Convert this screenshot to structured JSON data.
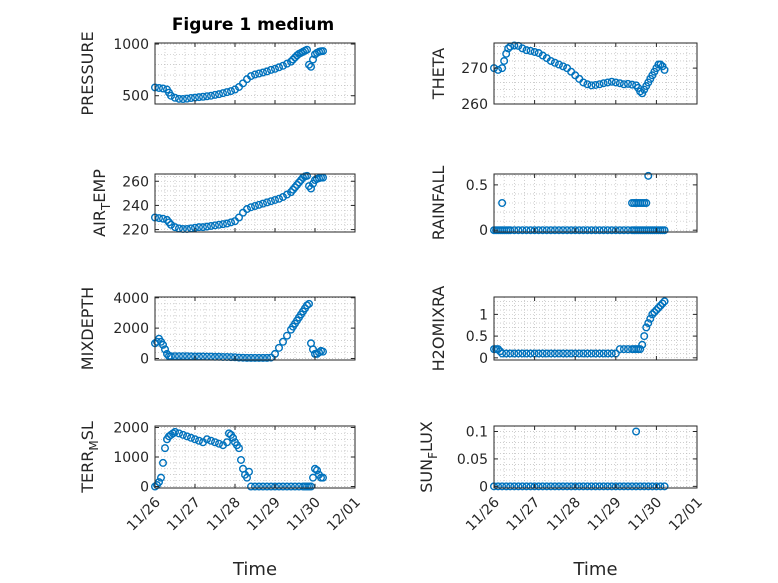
{
  "figure": {
    "title": "Figure 1 medium",
    "marker_color": "#0072BD",
    "axes_color": "#262626",
    "grid_color": "#b0b0b0"
  },
  "chart_data": [
    {
      "type": "scatter",
      "ylabel": "PRESSURE",
      "xlabel": "",
      "title": "Figure 1 medium",
      "ylim": [
        420,
        1010
      ],
      "yticks": [
        500,
        1000
      ],
      "xlim": [
        0,
        5
      ],
      "xticklabels_visible": false,
      "series": [
        {
          "x": [
            0.0,
            0.1,
            0.2,
            0.3,
            0.35,
            0.4,
            0.5,
            0.6,
            0.7,
            0.8,
            0.9,
            1.0,
            1.1,
            1.2,
            1.3,
            1.4,
            1.5,
            1.6,
            1.7,
            1.8,
            1.9,
            2.0,
            2.1,
            2.2,
            2.3,
            2.4,
            2.5,
            2.6,
            2.7,
            2.8,
            2.9,
            3.0,
            3.1,
            3.2,
            3.3,
            3.4,
            3.45,
            3.5,
            3.55,
            3.6,
            3.65,
            3.7,
            3.75,
            3.8,
            3.85,
            3.9,
            3.95,
            4.0,
            4.05,
            4.1,
            4.15,
            4.2
          ],
          "y": [
            580,
            575,
            570,
            560,
            530,
            500,
            480,
            470,
            468,
            472,
            478,
            482,
            486,
            490,
            495,
            500,
            508,
            515,
            525,
            535,
            545,
            560,
            585,
            620,
            660,
            690,
            705,
            715,
            725,
            735,
            750,
            760,
            775,
            790,
            810,
            830,
            850,
            870,
            890,
            905,
            915,
            925,
            935,
            945,
            800,
            780,
            850,
            900,
            915,
            925,
            930,
            932
          ]
        }
      ]
    },
    {
      "type": "scatter",
      "ylabel": "THETA",
      "xlabel": "",
      "ylim": [
        260,
        277
      ],
      "yticks": [
        260,
        270
      ],
      "xlim": [
        0,
        5
      ],
      "xticklabels_visible": false,
      "series": [
        {
          "x": [
            0.0,
            0.1,
            0.2,
            0.25,
            0.3,
            0.35,
            0.4,
            0.5,
            0.6,
            0.7,
            0.8,
            0.9,
            1.0,
            1.1,
            1.2,
            1.3,
            1.4,
            1.5,
            1.6,
            1.7,
            1.8,
            1.9,
            2.0,
            2.1,
            2.2,
            2.3,
            2.4,
            2.5,
            2.6,
            2.7,
            2.8,
            2.9,
            3.0,
            3.1,
            3.2,
            3.3,
            3.4,
            3.5,
            3.55,
            3.6,
            3.65,
            3.7,
            3.75,
            3.8,
            3.85,
            3.9,
            3.95,
            4.0,
            4.05,
            4.1,
            4.15,
            4.2
          ],
          "y": [
            270,
            269.5,
            270,
            272,
            274,
            275.5,
            276,
            276.3,
            276.2,
            275.5,
            275,
            274.8,
            274.5,
            274.2,
            273.5,
            272.8,
            272,
            271.5,
            271,
            270.5,
            270,
            269,
            268,
            267,
            266,
            265.5,
            265.2,
            265.3,
            265.5,
            265.8,
            266,
            266.2,
            266,
            265.8,
            265.5,
            265.6,
            265.4,
            265.2,
            264.5,
            263.5,
            263,
            264,
            265,
            266,
            267,
            268,
            269,
            270,
            271,
            271,
            270.5,
            269.5
          ]
        }
      ]
    },
    {
      "type": "scatter",
      "ylabel": "AIR_TEMP",
      "xlabel": "",
      "ylim": [
        218,
        266
      ],
      "yticks": [
        220,
        240,
        260
      ],
      "xlim": [
        0,
        5
      ],
      "xticklabels_visible": false,
      "series": [
        {
          "x": [
            0.0,
            0.1,
            0.2,
            0.3,
            0.35,
            0.4,
            0.5,
            0.6,
            0.7,
            0.8,
            0.9,
            1.0,
            1.1,
            1.2,
            1.3,
            1.4,
            1.5,
            1.6,
            1.7,
            1.8,
            1.9,
            2.0,
            2.1,
            2.2,
            2.3,
            2.4,
            2.5,
            2.6,
            2.7,
            2.8,
            2.9,
            3.0,
            3.1,
            3.2,
            3.3,
            3.4,
            3.45,
            3.5,
            3.55,
            3.6,
            3.65,
            3.7,
            3.75,
            3.8,
            3.85,
            3.9,
            3.95,
            4.0,
            4.05,
            4.1,
            4.15,
            4.2
          ],
          "y": [
            230,
            229.5,
            229,
            228,
            226,
            224,
            222,
            221,
            220.5,
            220.5,
            221,
            221.5,
            222,
            222,
            222.5,
            223,
            223.5,
            224,
            224.5,
            225,
            226,
            227,
            230,
            234,
            237,
            238.5,
            239.5,
            240.5,
            241.5,
            242.5,
            243.5,
            244.5,
            245.5,
            247,
            249,
            251,
            253,
            255,
            257,
            259,
            261,
            263,
            264,
            264.5,
            256,
            254,
            258,
            261,
            262,
            262.5,
            263,
            263
          ]
        }
      ]
    },
    {
      "type": "scatter",
      "ylabel": "RAINFALL",
      "xlabel": "",
      "ylim": [
        -0.02,
        0.62
      ],
      "yticks": [
        0,
        0.5
      ],
      "xlim": [
        0,
        5
      ],
      "xticklabels_visible": false,
      "series": [
        {
          "x": [
            0.0,
            0.05,
            0.1,
            0.15,
            0.2,
            0.25,
            0.3,
            0.35,
            0.4,
            0.5,
            0.6,
            0.7,
            0.8,
            0.9,
            1.0,
            1.1,
            1.2,
            1.3,
            1.4,
            1.5,
            1.6,
            1.7,
            1.8,
            1.9,
            2.0,
            2.1,
            2.2,
            2.3,
            2.4,
            2.5,
            2.6,
            2.7,
            2.8,
            2.9,
            3.0,
            3.1,
            3.2,
            3.3,
            3.4,
            3.45,
            3.5,
            3.55,
            3.6,
            3.65,
            3.7,
            3.75,
            3.8,
            3.85,
            3.9,
            3.95,
            4.0,
            4.05,
            4.1,
            4.15,
            4.2,
            0.2,
            3.4,
            3.45,
            3.5,
            3.55,
            3.6,
            3.65,
            3.7,
            3.75,
            3.8
          ],
          "y": [
            0,
            0,
            0,
            0,
            0,
            0,
            0,
            0,
            0,
            0,
            0,
            0,
            0,
            0,
            0,
            0,
            0,
            0,
            0,
            0,
            0,
            0,
            0,
            0,
            0,
            0,
            0,
            0,
            0,
            0,
            0,
            0,
            0,
            0,
            0,
            0,
            0,
            0,
            0,
            0,
            0,
            0,
            0,
            0,
            0,
            0,
            0,
            0,
            0,
            0,
            0,
            0,
            0,
            0,
            0,
            0.3,
            0.3,
            0.3,
            0.3,
            0.3,
            0.3,
            0.3,
            0.3,
            0.3,
            0.6
          ]
        }
      ]
    },
    {
      "type": "scatter",
      "ylabel": "MIXDEPTH",
      "xlabel": "",
      "ylim": [
        -100,
        4050
      ],
      "yticks": [
        0,
        2000,
        4000
      ],
      "xlim": [
        0,
        5
      ],
      "xticklabels_visible": false,
      "series": [
        {
          "x": [
            0.0,
            0.05,
            0.1,
            0.15,
            0.2,
            0.25,
            0.3,
            0.35,
            0.4,
            0.5,
            0.6,
            0.7,
            0.8,
            0.9,
            1.0,
            1.1,
            1.2,
            1.3,
            1.4,
            1.5,
            1.6,
            1.7,
            1.8,
            1.9,
            2.0,
            2.1,
            2.2,
            2.3,
            2.4,
            2.5,
            2.6,
            2.7,
            2.8,
            2.9,
            3.0,
            3.1,
            3.2,
            3.3,
            3.4,
            3.45,
            3.5,
            3.55,
            3.6,
            3.65,
            3.7,
            3.75,
            3.8,
            3.85,
            3.9,
            3.95,
            4.0,
            4.05,
            4.1,
            4.15,
            4.2
          ],
          "y": [
            1000,
            1100,
            1300,
            1100,
            900,
            600,
            300,
            150,
            150,
            150,
            150,
            150,
            150,
            140,
            130,
            130,
            130,
            120,
            120,
            110,
            110,
            100,
            100,
            90,
            80,
            60,
            50,
            40,
            40,
            40,
            40,
            40,
            40,
            60,
            300,
            700,
            1100,
            1500,
            1900,
            2100,
            2300,
            2500,
            2700,
            2900,
            3100,
            3300,
            3500,
            3600,
            1000,
            600,
            300,
            300,
            400,
            500,
            450
          ]
        }
      ]
    },
    {
      "type": "scatter",
      "ylabel": "H2OMIXRA",
      "xlabel": "",
      "ylim": [
        -0.05,
        1.4
      ],
      "yticks": [
        0,
        0.5,
        1
      ],
      "xlim": [
        0,
        5
      ],
      "xticklabels_visible": false,
      "series": [
        {
          "x": [
            0.0,
            0.05,
            0.1,
            0.15,
            0.2,
            0.3,
            0.4,
            0.5,
            0.6,
            0.7,
            0.8,
            0.9,
            1.0,
            1.1,
            1.2,
            1.3,
            1.4,
            1.5,
            1.6,
            1.7,
            1.8,
            1.9,
            2.0,
            2.1,
            2.2,
            2.3,
            2.4,
            2.5,
            2.6,
            2.7,
            2.8,
            2.9,
            3.0,
            3.1,
            3.2,
            3.3,
            3.4,
            3.45,
            3.5,
            3.55,
            3.6,
            3.65,
            3.7,
            3.75,
            3.8,
            3.85,
            3.9,
            3.95,
            4.0,
            4.05,
            4.1,
            4.15,
            4.2
          ],
          "y": [
            0.2,
            0.2,
            0.2,
            0.15,
            0.1,
            0.1,
            0.1,
            0.1,
            0.1,
            0.1,
            0.1,
            0.1,
            0.1,
            0.1,
            0.1,
            0.1,
            0.1,
            0.1,
            0.1,
            0.1,
            0.1,
            0.1,
            0.1,
            0.1,
            0.1,
            0.1,
            0.1,
            0.1,
            0.1,
            0.1,
            0.1,
            0.1,
            0.1,
            0.2,
            0.2,
            0.2,
            0.2,
            0.2,
            0.2,
            0.2,
            0.2,
            0.3,
            0.5,
            0.7,
            0.8,
            0.9,
            1.0,
            1.05,
            1.1,
            1.15,
            1.2,
            1.25,
            1.3
          ]
        }
      ]
    },
    {
      "type": "scatter",
      "ylabel": "TERR_MSL",
      "xlabel": "Time",
      "ylim": [
        -50,
        2050
      ],
      "yticks": [
        0,
        1000,
        2000
      ],
      "xlim": [
        0,
        5
      ],
      "xticks": [
        0,
        1,
        2,
        3,
        4,
        5
      ],
      "xticklabels": [
        "11/26",
        "11/27",
        "11/28",
        "11/29",
        "11/30",
        "12/01"
      ],
      "series": [
        {
          "x": [
            0.0,
            0.05,
            0.1,
            0.15,
            0.2,
            0.25,
            0.3,
            0.35,
            0.4,
            0.45,
            0.5,
            0.6,
            0.7,
            0.8,
            0.9,
            1.0,
            1.1,
            1.2,
            1.3,
            1.4,
            1.5,
            1.6,
            1.7,
            1.8,
            1.85,
            1.9,
            1.95,
            2.0,
            2.05,
            2.1,
            2.15,
            2.2,
            2.25,
            2.3,
            2.35,
            2.4,
            2.5,
            2.6,
            2.7,
            2.8,
            2.9,
            3.0,
            3.1,
            3.2,
            3.3,
            3.4,
            3.5,
            3.6,
            3.7,
            3.75,
            3.8,
            3.85,
            3.9,
            3.95,
            4.0,
            4.05,
            4.1,
            4.15,
            4.2
          ],
          "y": [
            0,
            50,
            150,
            300,
            800,
            1300,
            1600,
            1700,
            1750,
            1800,
            1850,
            1800,
            1750,
            1700,
            1650,
            1600,
            1550,
            1500,
            1600,
            1550,
            1500,
            1450,
            1400,
            1500,
            1800,
            1750,
            1650,
            1500,
            1400,
            1300,
            900,
            600,
            400,
            300,
            500,
            0,
            0,
            0,
            0,
            0,
            0,
            0,
            0,
            0,
            0,
            0,
            0,
            0,
            0,
            0,
            0,
            0,
            0,
            300,
            600,
            550,
            400,
            300,
            300
          ]
        }
      ]
    },
    {
      "type": "scatter",
      "ylabel": "SUN_FLUX",
      "xlabel": "Time",
      "ylim": [
        -0.003,
        0.11
      ],
      "yticks": [
        0,
        0.05,
        0.1
      ],
      "xlim": [
        0,
        5
      ],
      "xticks": [
        0,
        1,
        2,
        3,
        4,
        5
      ],
      "xticklabels": [
        "11/26",
        "11/27",
        "11/28",
        "11/29",
        "11/30",
        "12/01"
      ],
      "series": [
        {
          "x": [
            0.0,
            0.1,
            0.2,
            0.3,
            0.4,
            0.5,
            0.6,
            0.7,
            0.8,
            0.9,
            1.0,
            1.1,
            1.2,
            1.3,
            1.4,
            1.5,
            1.6,
            1.7,
            1.8,
            1.9,
            2.0,
            2.1,
            2.2,
            2.3,
            2.4,
            2.5,
            2.6,
            2.7,
            2.8,
            2.9,
            3.0,
            3.1,
            3.2,
            3.3,
            3.4,
            3.5,
            3.6,
            3.7,
            3.8,
            3.9,
            4.0,
            4.1,
            4.2,
            3.5
          ],
          "y": [
            0,
            0,
            0,
            0,
            0,
            0,
            0,
            0,
            0,
            0,
            0,
            0,
            0,
            0,
            0,
            0,
            0,
            0,
            0,
            0,
            0,
            0,
            0,
            0,
            0,
            0,
            0,
            0,
            0,
            0,
            0,
            0,
            0,
            0,
            0,
            0,
            0,
            0,
            0,
            0,
            0,
            0,
            0,
            0.1
          ]
        }
      ]
    }
  ]
}
